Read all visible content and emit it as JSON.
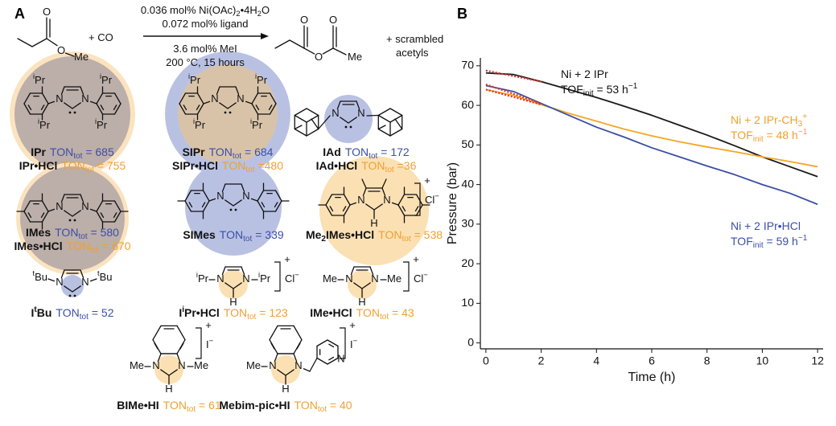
{
  "panel_labels": [
    "A",
    "B"
  ],
  "reaction": {
    "conditions": [
      [
        "0.036 mol% Ni(OAc)",
        {
          "sub": "2"
        },
        "•4H",
        {
          "sub": "2"
        },
        "O"
      ],
      "0.072 mol% ligand",
      "3.6 mol% MeI",
      "200 °C, 15 hours"
    ],
    "plus_co": "+ CO",
    "byproduct": [
      "+ scrambled",
      "acetyls"
    ],
    "ester_atoms": [
      "O",
      "O",
      "Me"
    ],
    "anhydride_atoms": [
      "O",
      "O",
      "O",
      "Me"
    ]
  },
  "ligands": [
    {
      "name": "IPr",
      "ton": [
        "TON",
        {
          "sub": "tot"
        },
        " = 685"
      ],
      "color": "#3b4fa6"
    },
    {
      "name": "IPr•HCl",
      "ton": [
        "TON",
        {
          "sub": "tot"
        },
        " = 755"
      ],
      "color": "#f0a030"
    },
    {
      "name": "SIPr",
      "ton": [
        "TON",
        {
          "sub": "tot"
        },
        " = 684"
      ],
      "color": "#3b4fa6"
    },
    {
      "name": "SIPr•HCl",
      "ton": [
        "TON",
        {
          "sub": "tot"
        },
        " =480"
      ],
      "color": "#f0a030"
    },
    {
      "name": "IAd",
      "ton": [
        "TON",
        {
          "sub": "tot"
        },
        " = 172"
      ],
      "color": "#3b4fa6"
    },
    {
      "name": "IAd•HCl",
      "ton": [
        "TON",
        {
          "sub": "tot"
        },
        " =36"
      ],
      "color": "#f0a030"
    },
    {
      "name": "IMes",
      "ton": [
        "TON",
        {
          "sub": "tot"
        },
        " = 580"
      ],
      "color": "#3b4fa6"
    },
    {
      "name": "IMes•HCl",
      "ton": [
        "TON",
        {
          "sub": "tot"
        },
        " = 670"
      ],
      "color": "#f0a030"
    },
    {
      "name": "SIMes",
      "ton": [
        "TON",
        {
          "sub": "tot"
        },
        " = 339"
      ],
      "color": "#3b4fa6"
    },
    {
      "name": [
        "Me",
        {
          "sub": "2"
        },
        "IMes•HCl"
      ],
      "ton": [
        "TON",
        {
          "sub": "tot"
        },
        " = 538"
      ],
      "color": "#f0a030"
    },
    {
      "name": [
        "I",
        {
          "sup": "t"
        },
        "Bu"
      ],
      "ton": [
        "TON",
        {
          "sub": "tot"
        },
        " = 52"
      ],
      "color": "#3b4fa6"
    },
    {
      "name": [
        "I",
        {
          "sup": "i"
        },
        "Pr•HCl"
      ],
      "ton": [
        "TON",
        {
          "sub": "tot"
        },
        " = 123"
      ],
      "color": "#f0a030"
    },
    {
      "name": "IMe•HCl",
      "ton": [
        "TON",
        {
          "sub": "tot"
        },
        " = 43"
      ],
      "color": "#f0a030"
    },
    {
      "name": "BIMe•HI",
      "ton": [
        "TON",
        {
          "sub": "tot"
        },
        " = 61"
      ],
      "color": "#f0a030"
    },
    {
      "name": "Mebim-pic•HI",
      "ton": [
        "TON",
        {
          "sub": "tot"
        },
        " = 40"
      ],
      "color": "#f0a030"
    }
  ],
  "structures": [
    {
      "atoms": [
        "N",
        "N",
        [
          {
            "sup": "i"
          },
          "Pr"
        ],
        [
          {
            "sup": "i"
          },
          "Pr"
        ],
        [
          {
            "sup": "i"
          },
          "Pr"
        ],
        [
          {
            "sup": "i"
          },
          "Pr"
        ]
      ]
    },
    {
      "atoms": [
        "N",
        "N",
        [
          {
            "sup": "i"
          },
          "Pr"
        ],
        [
          {
            "sup": "i"
          },
          "Pr"
        ],
        [
          {
            "sup": "i"
          },
          "Pr"
        ],
        [
          {
            "sup": "i"
          },
          "Pr"
        ]
      ]
    },
    {
      "atoms": [
        "N",
        "N"
      ]
    },
    {
      "atoms": [
        "N",
        "N"
      ]
    },
    {
      "atoms": [
        "N",
        "N"
      ]
    },
    {
      "atoms": [
        "N",
        "N",
        "H",
        "+",
        [
          "Cl",
          {
            "sup": "−"
          }
        ]
      ]
    },
    {
      "atoms": [
        "N",
        "N",
        [
          {
            "sup": "t"
          },
          "Bu"
        ],
        [
          {
            "sup": "t"
          },
          "Bu"
        ]
      ]
    },
    {
      "atoms": [
        "N",
        "N",
        "H",
        [
          {
            "sup": "i"
          },
          "Pr"
        ],
        [
          {
            "sup": "i"
          },
          "Pr"
        ],
        "+",
        [
          "Cl",
          {
            "sup": "−"
          }
        ]
      ]
    },
    {
      "atoms": [
        "N",
        "N",
        "H",
        "Me",
        "Me",
        "+",
        [
          "Cl",
          {
            "sup": "−"
          }
        ]
      ]
    },
    {
      "atoms": [
        "N",
        "N",
        "H",
        "Me",
        "Me",
        "+",
        [
          "I",
          {
            "sup": "−"
          }
        ]
      ]
    },
    {
      "atoms": [
        "N",
        "N",
        "H",
        "Me",
        "N",
        "+",
        [
          "I",
          {
            "sup": "−"
          }
        ]
      ]
    }
  ],
  "chart_data": {
    "type": "line",
    "x_label": "Time (h)",
    "y_label": "Pressure (bar)",
    "x": [
      0,
      1,
      2,
      3,
      4,
      5,
      6,
      7,
      8,
      9,
      10,
      11,
      12
    ],
    "series": [
      {
        "color": "#1a1a1a",
        "values": [
          68.2,
          67.8,
          66,
          64,
          62,
          59.8,
          57.5,
          55,
          52.5,
          49.8,
          47,
          44.5,
          42
        ]
      },
      {
        "color": "#f5a623",
        "values": [
          64,
          62.5,
          60.2,
          58,
          56,
          54,
          52.3,
          50.8,
          49.5,
          48.3,
          47,
          45.8,
          44.5
        ]
      },
      {
        "color": "#3a4fa0",
        "values": [
          65,
          63.5,
          60.5,
          57.5,
          54.5,
          52,
          49.3,
          47,
          44.7,
          42.5,
          40,
          37.8,
          35
        ]
      },
      {
        "color": "#e0302a",
        "dashed": true,
        "x": [
          0,
          2
        ],
        "values": [
          68.8,
          66
        ]
      },
      {
        "color": "#e0302a",
        "dashed": true,
        "x": [
          0,
          2
        ],
        "values": [
          64,
          60.2
        ]
      },
      {
        "color": "#e0302a",
        "dashed": true,
        "x": [
          0,
          2
        ],
        "values": [
          65.3,
          60.5
        ]
      }
    ],
    "annotations": [
      {
        "color": "#111111",
        "lines": [
          [
            "Ni + 2 IPr"
          ],
          [
            "TOF",
            {
              "sub": "init"
            },
            " = 53 h",
            {
              "sup": "−1"
            }
          ]
        ]
      },
      {
        "color": "#f0a030",
        "lines": [
          [
            "Ni + 2 IPr-CH",
            {
              "sub": "3"
            },
            {
              "sup": "+"
            }
          ],
          [
            "TOF",
            {
              "sub": "init"
            },
            " = 48 h",
            {
              "sup": "−1"
            }
          ]
        ]
      },
      {
        "color": "#3b4fa6",
        "lines": [
          [
            "Ni + 2 IPr•HCl"
          ],
          [
            "TOF",
            {
              "sub": "init"
            },
            " = 59 h",
            {
              "sup": "−1"
            }
          ]
        ]
      }
    ],
    "xlim": [
      -0.2,
      12.2
    ],
    "ylim": [
      -1.5,
      72
    ],
    "xticks": [
      0,
      2,
      4,
      6,
      8,
      10,
      12
    ],
    "yticks": [
      0,
      10,
      20,
      30,
      40,
      50,
      60,
      70
    ]
  }
}
